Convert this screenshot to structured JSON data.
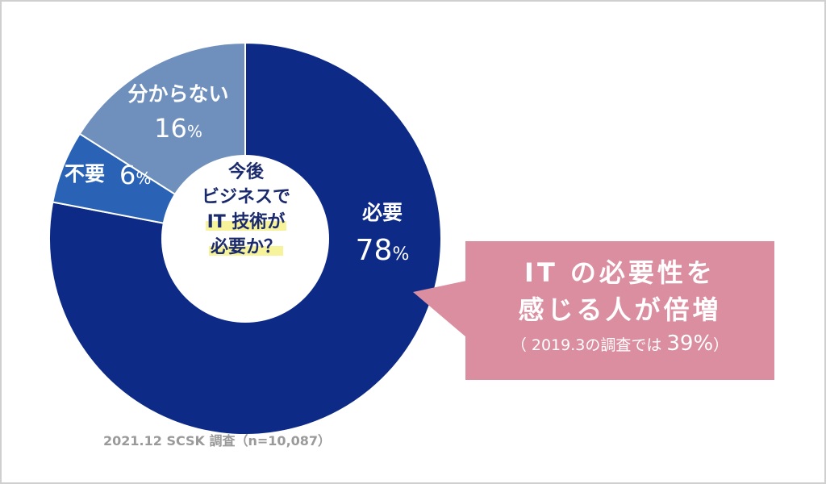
{
  "chart_data": {
    "type": "pie",
    "center_label": {
      "line1": "今後",
      "line2": "ビジネスで",
      "line3": "IT 技術が",
      "line4": "必要か？"
    },
    "slices": [
      {
        "label": "必要",
        "value": 78,
        "value_text": "78",
        "color": "#0d2a87"
      },
      {
        "label": "不要",
        "value": 6,
        "value_text": "6",
        "color": "#2a62b5"
      },
      {
        "label": "分からない",
        "value": 16,
        "value_text": "16",
        "color": "#6f90bc"
      }
    ],
    "unit": "%",
    "callout": {
      "line1": "IT の必要性を",
      "line2": "感じる人が倍増",
      "note_prefix": "（ 2019.3の調査では ",
      "note_value": "39%",
      "note_suffix": "）"
    },
    "source": "2021.12  SCSK 調査（n=10,087）"
  }
}
